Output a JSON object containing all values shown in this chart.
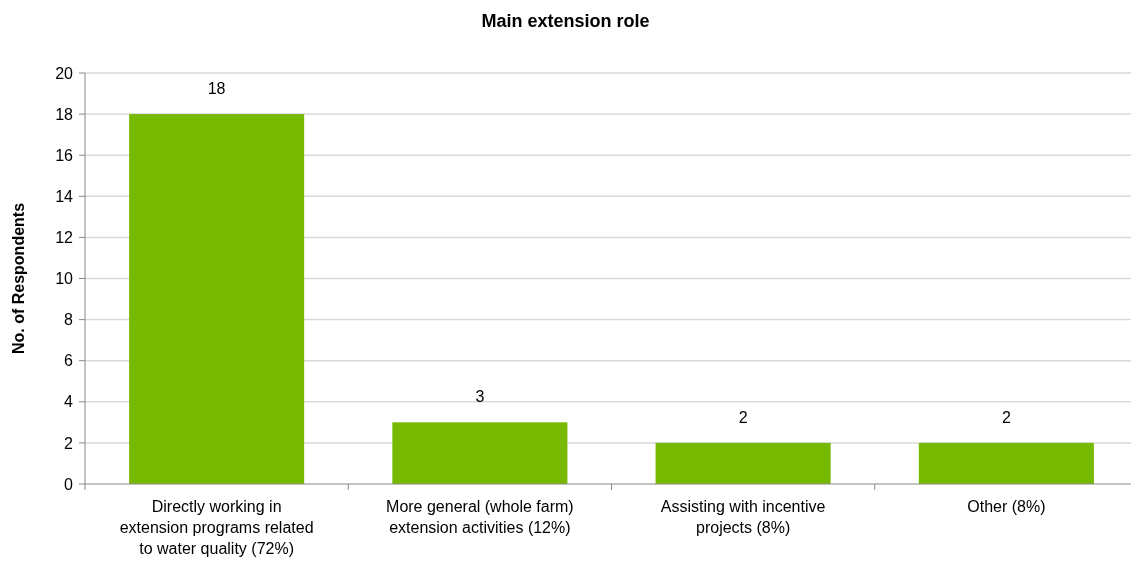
{
  "chart_data": {
    "type": "bar",
    "title": "Main extension role",
    "ylabel": "No. of Respondents",
    "categories": [
      "Directly working in extension programs related to water quality (72%)",
      "More general (whole farm) extension activities (12%)",
      "Assisting with incentive projects (8%)",
      "Other (8%)"
    ],
    "values": [
      18,
      3,
      2,
      2
    ],
    "color": "#76b900",
    "ylim": [
      0,
      20
    ],
    "yticks": [
      0,
      2,
      4,
      6,
      8,
      10,
      12,
      14,
      16,
      18,
      20
    ],
    "grid": "y",
    "data_labels": true
  }
}
